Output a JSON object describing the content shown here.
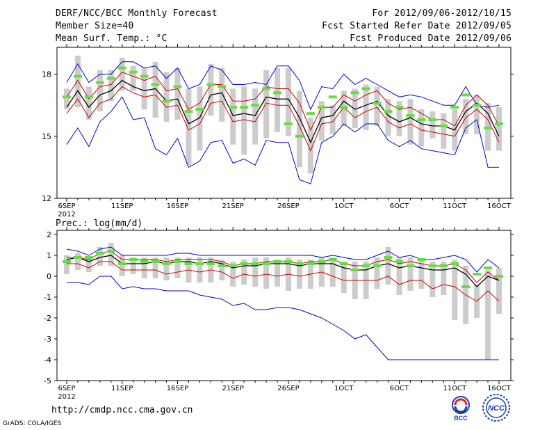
{
  "header": {
    "title": "DERF/NCC/BCC Monthly Forecast",
    "member_size": "Member Size=40",
    "variable": "Mean Surf. Temp.: °C",
    "period": "For 2012/09/06-2012/10/15",
    "refer_date": "Fcst Started Refer Date 2012/09/05",
    "produced_date": "Fcst Produced Date 2012/09/06"
  },
  "footer": {
    "url": "http://cmdp.ncc.cma.gov.cn",
    "grads": "GrADS: COLA/IGES",
    "logo_bcc_text": "BCC",
    "logo_ncc_text": "NCC"
  },
  "colors": {
    "ensemble_range": "#0000cc",
    "spread": "#cc0000",
    "mean": "#000000",
    "box": "#cccccc",
    "marker": "#66dd44"
  },
  "chart_data": [
    {
      "type": "line",
      "title": "Mean Surf. Temp.: °C",
      "ylim": [
        12,
        19.3
      ],
      "yticks": [
        12,
        15,
        18
      ],
      "xlim": [
        0,
        39
      ],
      "xtick_positions": [
        0,
        5,
        10,
        15,
        20,
        25,
        30,
        35,
        39
      ],
      "xtick_labels": [
        "6SEP",
        "11SEP",
        "16SEP",
        "21SEP",
        "26SEP",
        "1OCT",
        "6OCT",
        "11OCT",
        "16OCT"
      ],
      "year_label": "2012",
      "series": [
        {
          "name": "max",
          "values": [
            17.6,
            18.5,
            17.6,
            18,
            18,
            18.6,
            18.6,
            18.3,
            18.4,
            17.8,
            18.3,
            17.3,
            17.5,
            18.4,
            18.2,
            17.5,
            17.5,
            17.6,
            17.5,
            18.4,
            18.4,
            17.7,
            16.3,
            17.4,
            17.3,
            18,
            17.5,
            17.8,
            17.5,
            17.2,
            16.9,
            17,
            16.9,
            16.7,
            16.5,
            16.5,
            17.4,
            16.5,
            16.4,
            16.5
          ]
        },
        {
          "name": "upper",
          "values": [
            16.9,
            17.7,
            16.8,
            17.4,
            17.5,
            18.1,
            17.9,
            17.7,
            17.9,
            17.2,
            17.3,
            16.3,
            16.6,
            17.5,
            17.5,
            16.7,
            16.7,
            16.8,
            17.4,
            17.3,
            17.3,
            16.6,
            15.3,
            16.4,
            16.4,
            17,
            16.7,
            17,
            17.2,
            16.6,
            16.3,
            16.4,
            16.1,
            15.8,
            15.8,
            15.5,
            16.5,
            17,
            16.5,
            15.5
          ]
        },
        {
          "name": "mean",
          "values": [
            16.4,
            17.2,
            16.4,
            17.0,
            17.2,
            17.7,
            17.4,
            17.2,
            17.3,
            16.7,
            16.8,
            15.6,
            15.9,
            17.0,
            17.1,
            16.0,
            16.1,
            16.0,
            16.9,
            16.8,
            16.8,
            15.9,
            14.7,
            15.9,
            16.0,
            16.7,
            16.3,
            16.5,
            16.7,
            16.0,
            15.7,
            15.9,
            15.6,
            15.5,
            15.5,
            15.3,
            16.2,
            16.6,
            16.1,
            15.0
          ]
        },
        {
          "name": "lower",
          "values": [
            16.1,
            16.8,
            15.9,
            16.6,
            16.8,
            17.4,
            17.1,
            16.9,
            17,
            16.4,
            16.5,
            15.3,
            15.6,
            16.6,
            16.7,
            15.7,
            15.8,
            15.7,
            16.6,
            16.5,
            16.5,
            15.5,
            14.3,
            15.6,
            15.7,
            16.4,
            15.9,
            16.2,
            16.4,
            15.7,
            15.4,
            15.6,
            15.3,
            15.2,
            15.1,
            15,
            15.9,
            16.3,
            15.8,
            14.7
          ]
        },
        {
          "name": "min",
          "values": [
            14.6,
            15.4,
            14.5,
            15.7,
            16.2,
            16.9,
            15.8,
            15.9,
            14.4,
            14.1,
            14.9,
            13.5,
            13.8,
            14.7,
            14.8,
            13.7,
            13.9,
            13.6,
            14.8,
            14.7,
            14.7,
            12.9,
            12.7,
            14.7,
            15,
            15.6,
            15.2,
            15.6,
            15.6,
            14.8,
            14.5,
            14.8,
            14.4,
            14.3,
            14.2,
            14.1,
            15.4,
            15.8,
            13.5,
            13.5
          ]
        },
        {
          "name": "median",
          "values": [
            16.9,
            17.9,
            16.9,
            17.6,
            17.8,
            18.3,
            18.1,
            17.9,
            17.5,
            16.7,
            17.4,
            16.2,
            16.3,
            17.5,
            17.4,
            16.4,
            16.4,
            16.5,
            17.3,
            17.1,
            15.6,
            15.0,
            16.1,
            16.4,
            16.9,
            16.4,
            17.1,
            17.3,
            16.6,
            16.2,
            16.4,
            16.0,
            15.8,
            15.8,
            15.5,
            16.4,
            17,
            16.5,
            15.4,
            15.6
          ]
        },
        {
          "name": "box_top",
          "values": [
            17.3,
            18.9,
            17.4,
            18.2,
            18.2,
            18.8,
            18.4,
            18.3,
            18.6,
            18.1,
            18.3,
            17.3,
            17.4,
            18.5,
            18.3,
            17.3,
            17.4,
            17.3,
            18.2,
            18.3,
            18.3,
            17.2,
            15.9,
            16.7,
            16.5,
            17.2,
            17.3,
            17.5,
            17.4,
            16.8,
            16.7,
            16.8,
            16.3,
            16.2,
            16.1,
            16.3,
            16.8,
            17.0,
            16.6,
            16.4
          ]
        },
        {
          "name": "box_bottom",
          "values": [
            16.3,
            16.4,
            15.8,
            16.2,
            16.7,
            17.2,
            17.2,
            16.3,
            15.9,
            15.7,
            15.8,
            13.6,
            14.3,
            16.0,
            15.7,
            14.6,
            14.1,
            14.6,
            14.9,
            15.2,
            15.0,
            13.5,
            13.2,
            14.8,
            15.1,
            15.5,
            15.4,
            15.3,
            15.5,
            15.0,
            15.0,
            14.6,
            14.5,
            14.9,
            14.4,
            14.3,
            15.1,
            15.1,
            14.3,
            14.3
          ]
        }
      ]
    },
    {
      "type": "line",
      "title": "Prec.: log(mm/d)",
      "ylim": [
        -5,
        2.2
      ],
      "yticks": [
        -5,
        -4,
        -3,
        -2,
        -1,
        0,
        1,
        2
      ],
      "xlim": [
        0,
        39
      ],
      "xtick_positions": [
        0,
        5,
        10,
        15,
        20,
        25,
        30,
        35,
        39
      ],
      "xtick_labels": [
        "6SEP",
        "11SEP",
        "16SEP",
        "21SEP",
        "26SEP",
        "1OCT",
        "6OCT",
        "11OCT",
        "16OCT"
      ],
      "year_label": "2012",
      "series": [
        {
          "name": "max",
          "values": [
            1.3,
            1.2,
            1.0,
            1.3,
            1.4,
            1.0,
            1.0,
            1.0,
            1.0,
            1.0,
            1.1,
            1.1,
            1.0,
            1.0,
            1.0,
            1.0,
            1.0,
            1.0,
            1.0,
            1.0,
            1.0,
            1.0,
            1.0,
            0.9,
            1.0,
            0.9,
            0.8,
            0.8,
            1.0,
            1.2,
            0.9,
            1.0,
            0.8,
            0.8,
            0.9,
            1.0,
            0.8,
            0.2,
            0.8,
            0.4
          ]
        },
        {
          "name": "upper",
          "values": [
            0.9,
            0.9,
            0.8,
            1.1,
            1.2,
            0.8,
            0.8,
            0.8,
            0.8,
            0.7,
            0.8,
            0.8,
            0.8,
            0.8,
            0.7,
            0.5,
            0.6,
            0.6,
            0.7,
            0.7,
            0.7,
            0.6,
            0.7,
            0.7,
            0.8,
            0.6,
            0.5,
            0.5,
            0.7,
            0.8,
            0.6,
            0.7,
            0.6,
            0.5,
            0.5,
            0.6,
            0.3,
            -0.3,
            0.2,
            -0.2
          ]
        },
        {
          "name": "mean",
          "values": [
            0.8,
            0.9,
            0.7,
            0.9,
            1.0,
            0.6,
            0.6,
            0.6,
            0.7,
            0.6,
            0.7,
            0.7,
            0.6,
            0.7,
            0.6,
            0.4,
            0.5,
            0.5,
            0.6,
            0.6,
            0.6,
            0.5,
            0.6,
            0.6,
            0.6,
            0.4,
            0.3,
            0.3,
            0.5,
            0.6,
            0.4,
            0.5,
            0.4,
            0.3,
            0.3,
            0.4,
            0.1,
            -0.5,
            0.0,
            -0.2
          ]
        },
        {
          "name": "lower",
          "values": [
            0.6,
            0.6,
            0.4,
            0.7,
            0.7,
            0.3,
            0.3,
            0.3,
            0.3,
            0.1,
            0.2,
            0.3,
            0.2,
            0.3,
            0.2,
            -0.1,
            0.1,
            0.0,
            0.1,
            0.0,
            0.1,
            0.0,
            0.1,
            0.2,
            0.0,
            -0.2,
            -0.2,
            -0.2,
            -0.2,
            0.0,
            -0.4,
            -0.2,
            -0.2,
            -0.6,
            -0.4,
            -0.5,
            -0.9,
            -1.2,
            -0.7,
            -1.2
          ]
        },
        {
          "name": "min",
          "values": [
            -0.3,
            -0.3,
            -0.4,
            0.0,
            0.0,
            -0.6,
            -0.5,
            -0.6,
            -0.6,
            -0.7,
            -0.7,
            -0.7,
            -0.9,
            -1.0,
            -1.1,
            -1.4,
            -1.3,
            -1.6,
            -1.6,
            -1.5,
            -1.5,
            -1.6,
            -1.8,
            -2.0,
            -2.3,
            -2.6,
            -3.0,
            -2.8,
            -3.4,
            -4.0,
            -4.0,
            -4.0,
            -4.0,
            -4.0,
            -4.0,
            -4.0,
            -4.0,
            -4.0,
            -4.0,
            -4.0
          ]
        },
        {
          "name": "median",
          "values": [
            0.7,
            0.9,
            0.9,
            1.1,
            1.2,
            0.6,
            0.8,
            0.7,
            0.7,
            0.6,
            0.7,
            0.6,
            0.6,
            0.6,
            0.5,
            0.5,
            0.6,
            0.6,
            0.6,
            0.7,
            0.7,
            0.6,
            0.6,
            0.7,
            0.8,
            0.6,
            0.3,
            0.5,
            0.5,
            0.9,
            0.7,
            0.5,
            0.8,
            0.5,
            0.5,
            0.6,
            -0.5,
            0.1,
            0.4,
            0.0
          ]
        },
        {
          "name": "box_top",
          "values": [
            1.0,
            1.1,
            0.9,
            1.4,
            1.6,
            1.0,
            0.9,
            0.9,
            0.9,
            0.9,
            0.9,
            0.9,
            0.9,
            0.9,
            0.8,
            0.7,
            0.8,
            0.9,
            0.9,
            0.8,
            0.9,
            0.8,
            0.8,
            0.9,
            0.9,
            0.7,
            0.7,
            0.7,
            0.9,
            1.4,
            0.9,
            0.9,
            0.8,
            0.7,
            0.7,
            0.8,
            0.5,
            -0.4,
            0.3,
            0.4
          ]
        },
        {
          "name": "box_bottom",
          "values": [
            0.1,
            0.3,
            0.2,
            0.5,
            0.5,
            0.0,
            0.1,
            -0.1,
            -0.1,
            -0.2,
            -0.1,
            -0.3,
            -0.3,
            -0.3,
            -0.2,
            -0.5,
            -0.4,
            -0.5,
            -0.6,
            -0.5,
            -0.7,
            -0.6,
            -0.6,
            -0.5,
            -0.5,
            -0.8,
            -1.1,
            -1.1,
            -0.6,
            -0.4,
            -0.9,
            -0.7,
            -0.6,
            -1.0,
            -0.9,
            -2.1,
            -2.3,
            -2.0,
            -4.0,
            -1.8
          ]
        }
      ]
    }
  ]
}
